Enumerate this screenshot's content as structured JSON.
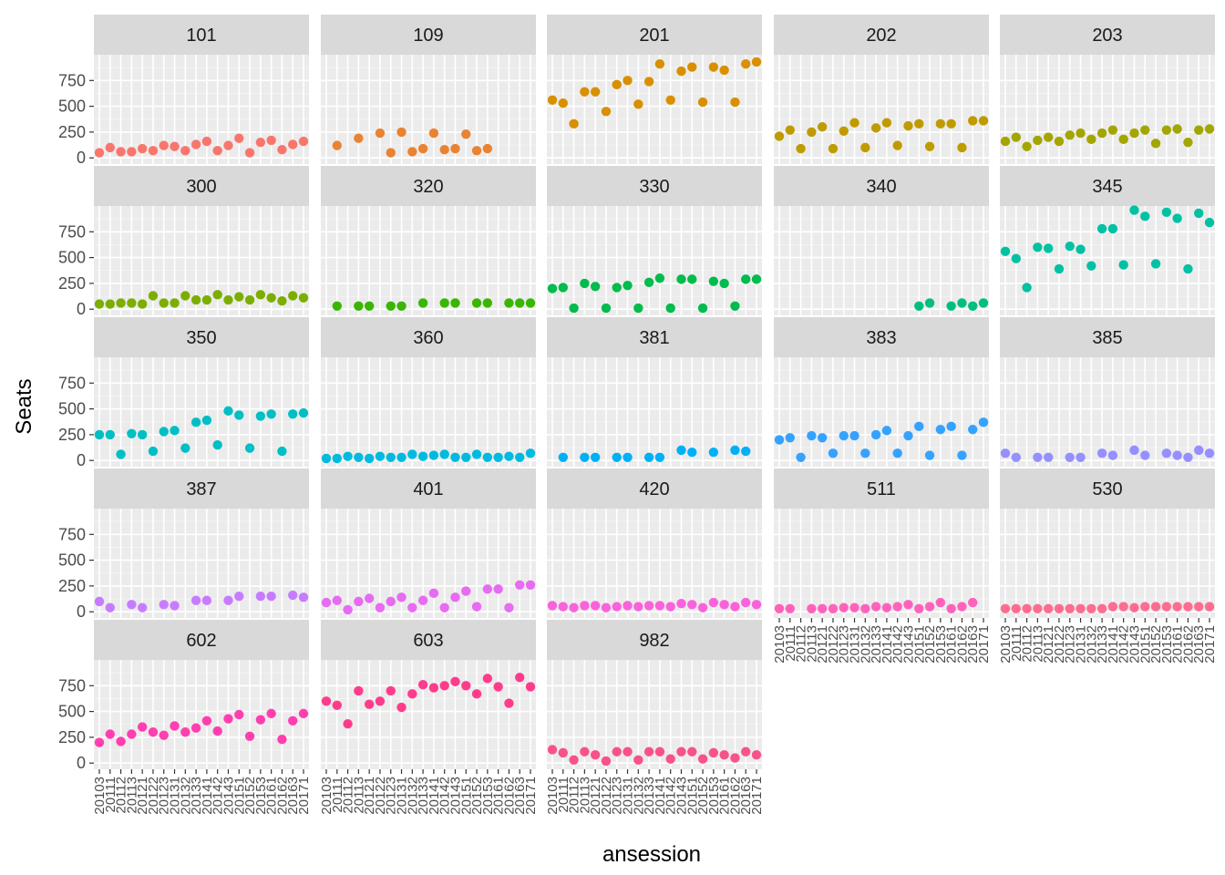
{
  "chart_data": {
    "type": "scatter",
    "xlabel": "ansession",
    "ylabel": "Seats",
    "x_categories": [
      "20103",
      "20111",
      "20112",
      "20113",
      "20121",
      "20122",
      "20123",
      "20131",
      "20132",
      "20133",
      "20141",
      "20142",
      "20143",
      "20151",
      "20152",
      "20153",
      "20161",
      "20162",
      "20163",
      "20171"
    ],
    "yticks": [
      0,
      250,
      500,
      750
    ],
    "ylim": [
      -60,
      1000
    ],
    "layout": "facet_wrap, 5 columns",
    "background": "#EBEBEB",
    "strip_fill": "#D9D9D9",
    "facets": [
      {
        "name": "101",
        "color": "#F8766D",
        "values": [
          50,
          100,
          60,
          60,
          90,
          70,
          120,
          110,
          70,
          130,
          160,
          70,
          120,
          190,
          50,
          150,
          170,
          80,
          130,
          160
        ]
      },
      {
        "name": "109",
        "color": "#EA8331",
        "values": [
          null,
          120,
          null,
          190,
          null,
          240,
          50,
          250,
          60,
          90,
          240,
          80,
          90,
          230,
          70,
          90,
          null,
          null,
          null,
          null
        ]
      },
      {
        "name": "201",
        "color": "#D89000",
        "values": [
          560,
          530,
          330,
          640,
          640,
          450,
          710,
          750,
          520,
          740,
          910,
          560,
          840,
          880,
          540,
          880,
          850,
          540,
          910,
          930
        ]
      },
      {
        "name": "202",
        "color": "#C09B00",
        "values": [
          210,
          270,
          90,
          250,
          300,
          90,
          260,
          340,
          100,
          290,
          340,
          120,
          310,
          330,
          110,
          330,
          330,
          100,
          360,
          360
        ]
      },
      {
        "name": "203",
        "color": "#A3A500",
        "values": [
          160,
          200,
          110,
          170,
          200,
          160,
          220,
          240,
          180,
          240,
          270,
          180,
          240,
          270,
          140,
          270,
          280,
          150,
          270,
          280
        ]
      },
      {
        "name": "300",
        "color": "#7CAE00",
        "values": [
          50,
          50,
          60,
          60,
          50,
          130,
          60,
          60,
          130,
          90,
          90,
          140,
          90,
          120,
          90,
          140,
          110,
          80,
          130,
          110
        ]
      },
      {
        "name": "320",
        "color": "#39B600",
        "values": [
          null,
          30,
          null,
          30,
          30,
          null,
          30,
          30,
          null,
          60,
          null,
          60,
          60,
          null,
          60,
          60,
          null,
          60,
          60,
          60
        ]
      },
      {
        "name": "330",
        "color": "#00BB4E",
        "values": [
          200,
          210,
          10,
          250,
          220,
          10,
          210,
          230,
          10,
          260,
          300,
          10,
          290,
          290,
          10,
          270,
          250,
          30,
          290,
          290
        ]
      },
      {
        "name": "340",
        "color": "#00BF7D",
        "values": [
          null,
          null,
          null,
          null,
          null,
          null,
          null,
          null,
          null,
          null,
          null,
          null,
          null,
          30,
          60,
          null,
          30,
          60,
          30,
          60
        ]
      },
      {
        "name": "345",
        "color": "#00C1A3",
        "values": [
          560,
          490,
          210,
          600,
          590,
          390,
          610,
          580,
          420,
          780,
          780,
          430,
          960,
          900,
          440,
          940,
          880,
          390,
          930,
          840
        ]
      },
      {
        "name": "350",
        "color": "#00BFC4",
        "values": [
          250,
          250,
          60,
          260,
          250,
          90,
          280,
          290,
          120,
          370,
          390,
          150,
          480,
          440,
          120,
          430,
          450,
          90,
          450,
          460
        ]
      },
      {
        "name": "360",
        "color": "#00BAE0",
        "values": [
          20,
          20,
          40,
          30,
          20,
          40,
          30,
          30,
          60,
          40,
          50,
          60,
          30,
          30,
          60,
          30,
          30,
          40,
          30,
          70
        ]
      },
      {
        "name": "381",
        "color": "#00B0F6",
        "values": [
          null,
          30,
          null,
          30,
          30,
          null,
          30,
          30,
          null,
          30,
          30,
          null,
          100,
          80,
          null,
          80,
          null,
          100,
          90,
          null
        ]
      },
      {
        "name": "383",
        "color": "#35A2FF",
        "values": [
          200,
          220,
          30,
          240,
          220,
          70,
          240,
          240,
          70,
          250,
          290,
          70,
          240,
          330,
          50,
          300,
          330,
          50,
          300,
          370
        ]
      },
      {
        "name": "385",
        "color": "#9590FF",
        "values": [
          70,
          30,
          null,
          30,
          30,
          null,
          30,
          30,
          null,
          70,
          50,
          null,
          100,
          50,
          null,
          70,
          50,
          30,
          100,
          70
        ]
      },
      {
        "name": "387",
        "color": "#C77CFF",
        "values": [
          100,
          40,
          null,
          70,
          40,
          null,
          70,
          60,
          null,
          110,
          110,
          null,
          110,
          150,
          null,
          150,
          150,
          null,
          160,
          140
        ]
      },
      {
        "name": "401",
        "color": "#E76BF3",
        "values": [
          90,
          110,
          20,
          100,
          130,
          40,
          100,
          140,
          40,
          110,
          180,
          40,
          140,
          200,
          50,
          220,
          220,
          40,
          260,
          260
        ]
      },
      {
        "name": "420",
        "color": "#FA62DB",
        "values": [
          60,
          50,
          40,
          60,
          60,
          40,
          50,
          60,
          50,
          60,
          60,
          50,
          80,
          70,
          40,
          90,
          70,
          50,
          90,
          70
        ]
      },
      {
        "name": "511",
        "color": "#FF62BC",
        "values": [
          30,
          30,
          null,
          30,
          30,
          30,
          40,
          40,
          30,
          50,
          40,
          50,
          70,
          30,
          50,
          90,
          30,
          50,
          90,
          null
        ]
      },
      {
        "name": "530",
        "color": "#FF6C91",
        "values": [
          30,
          30,
          30,
          30,
          30,
          30,
          30,
          30,
          30,
          30,
          50,
          50,
          40,
          50,
          50,
          50,
          50,
          50,
          50,
          50
        ]
      },
      {
        "name": "602",
        "color": "#FF3FB0",
        "values": [
          200,
          280,
          210,
          280,
          350,
          300,
          270,
          360,
          300,
          340,
          410,
          310,
          430,
          470,
          260,
          420,
          480,
          230,
          410,
          480
        ]
      },
      {
        "name": "603",
        "color": "#FF3C8C",
        "values": [
          600,
          560,
          380,
          700,
          570,
          600,
          700,
          540,
          670,
          760,
          730,
          750,
          790,
          750,
          670,
          820,
          740,
          580,
          830,
          740
        ]
      },
      {
        "name": "982",
        "color": "#F8528A",
        "values": [
          130,
          100,
          30,
          110,
          80,
          20,
          110,
          110,
          30,
          110,
          110,
          40,
          110,
          110,
          40,
          100,
          80,
          50,
          110,
          80
        ]
      }
    ]
  }
}
